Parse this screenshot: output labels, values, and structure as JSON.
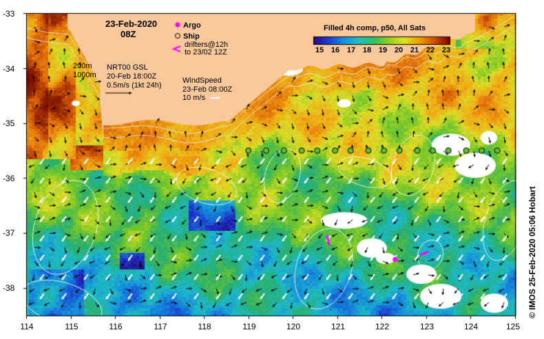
{
  "map": {
    "date": "23-Feb-2020",
    "hour": "08Z",
    "credit": "© IMOS 25-Feb-2020 05:06 Hobart",
    "lon_ticks": [
      "114",
      "115",
      "116",
      "117",
      "118",
      "119",
      "120",
      "121",
      "122",
      "123",
      "124",
      "125"
    ],
    "lat_ticks": [
      "-33",
      "-34",
      "-35",
      "-36",
      "-37",
      "-38"
    ],
    "lon_range": [
      114,
      125
    ],
    "lat_range": [
      -38.5,
      -33
    ]
  },
  "legend": {
    "argo": "Argo",
    "ship": "Ship",
    "drifters_line1": "drifters@12h",
    "drifters_line2": "to 23/02 12Z",
    "depth_200": "200m",
    "depth_1000": "1000m",
    "current_title": "NRT00 GSL",
    "current_time": "20-Feb 18:00Z",
    "current_scale": "0.5m/s (1kt 24h)",
    "wind_title": "WindSpeed",
    "wind_time": "23-Feb 08:00Z",
    "wind_scale": "10 m/s"
  },
  "colorbar": {
    "title": "Filled 4h comp, p50, All Sats",
    "labels": [
      "15",
      "16",
      "17",
      "18",
      "19",
      "20",
      "21",
      "22",
      "23"
    ],
    "colors": [
      "#2a0a7a",
      "#1a3cd0",
      "#1890e0",
      "#20c0c0",
      "#30c060",
      "#90d020",
      "#e0e020",
      "#f0a000",
      "#d05000",
      "#800000"
    ]
  },
  "ship_track": [
    {
      "lon": 119.0,
      "lat": -35.5
    },
    {
      "lon": 119.4,
      "lat": -35.5
    },
    {
      "lon": 119.8,
      "lat": -35.5
    },
    {
      "lon": 120.2,
      "lat": -35.5
    },
    {
      "lon": 120.55,
      "lat": -35.5
    },
    {
      "lon": 120.95,
      "lat": -35.5
    },
    {
      "lon": 121.3,
      "lat": -35.5
    },
    {
      "lon": 121.7,
      "lat": -35.5
    },
    {
      "lon": 122.05,
      "lat": -35.5
    },
    {
      "lon": 122.4,
      "lat": -35.5
    },
    {
      "lon": 122.8,
      "lat": -35.5
    },
    {
      "lon": 123.15,
      "lat": -35.5
    },
    {
      "lon": 123.5,
      "lat": -35.5
    },
    {
      "lon": 123.9,
      "lat": -35.5
    },
    {
      "lon": 124.25,
      "lat": -35.5
    },
    {
      "lon": 124.6,
      "lat": -35.5
    }
  ],
  "argo_floats": [
    {
      "lon": 122.3,
      "lat": -37.48
    }
  ]
}
